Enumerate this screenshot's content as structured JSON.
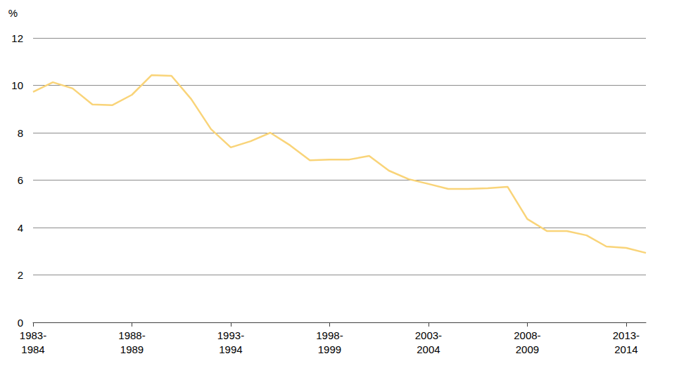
{
  "chart_data": {
    "type": "line",
    "y_label": "%",
    "categories": [
      "1983-\n1984",
      null,
      null,
      null,
      null,
      "1988-\n1989",
      null,
      null,
      null,
      null,
      "1993-\n1994",
      null,
      null,
      null,
      null,
      "1998-\n1999",
      null,
      null,
      null,
      null,
      "2003-\n2004",
      null,
      null,
      null,
      null,
      "2008-\n2009",
      null,
      null,
      null,
      null,
      "2013-\n2014",
      null
    ],
    "values": [
      9.72,
      10.13,
      9.87,
      9.19,
      9.16,
      9.6,
      10.43,
      10.4,
      9.42,
      8.15,
      7.38,
      7.64,
      8.0,
      7.47,
      6.84,
      6.87,
      6.87,
      7.02,
      6.4,
      6.04,
      5.84,
      5.63,
      5.63,
      5.66,
      5.72,
      4.36,
      3.85,
      3.85,
      3.67,
      3.2,
      3.14,
      2.93
    ],
    "color": "#f9d479",
    "ylim": [
      0,
      12
    ],
    "yticks": [
      0,
      2,
      4,
      6,
      8,
      10,
      12
    ],
    "grid": true
  }
}
